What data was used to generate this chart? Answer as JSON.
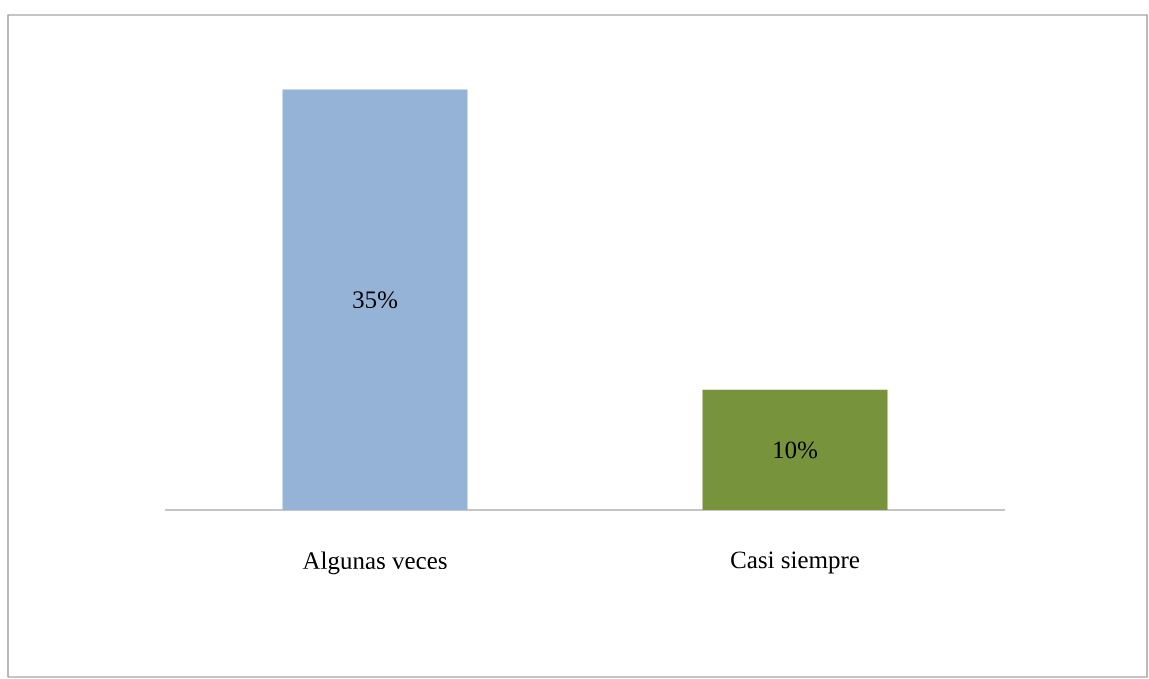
{
  "chart_data": {
    "type": "bar",
    "categories": [
      "Algunas veces",
      "Casi siempre"
    ],
    "values": [
      35,
      10
    ],
    "colors": [
      "#95b3d7",
      "#77933c"
    ],
    "value_labels": [
      "35%",
      "10%"
    ]
  }
}
